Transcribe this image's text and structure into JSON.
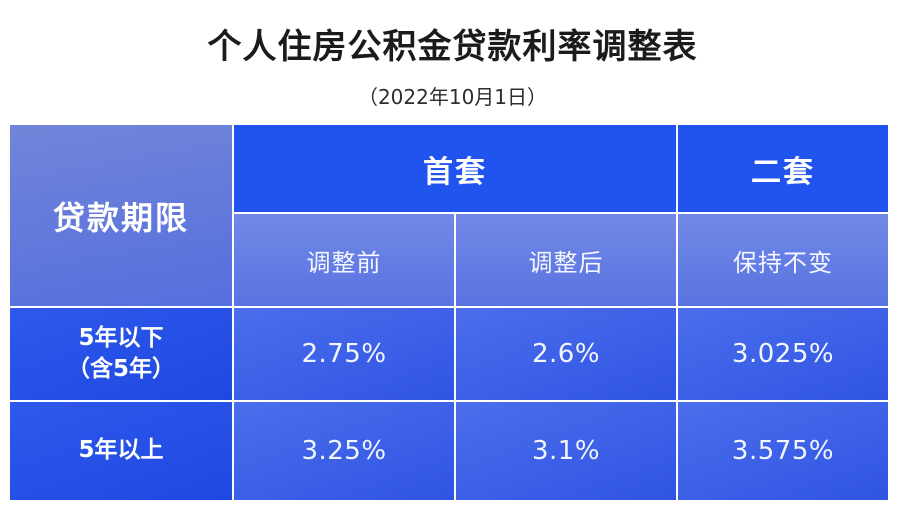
{
  "header": {
    "title": "个人住房公积金贷款利率调整表",
    "subtitle": "（2022年10月1日）"
  },
  "table": {
    "corner_header": "贷款期限",
    "group_headers": [
      "首套",
      "二套"
    ],
    "sub_headers": [
      "调整前",
      "调整后",
      "保持不变"
    ],
    "rows": [
      {
        "label_line1": "5年以下",
        "label_line2": "（含5年）",
        "values": [
          "2.75%",
          "2.6%",
          "3.025%"
        ]
      },
      {
        "label_line1": "5年以上",
        "label_line2": "",
        "values": [
          "3.25%",
          "3.1%",
          "3.575%"
        ]
      }
    ]
  },
  "colors": {
    "group-header": "#2154ef",
    "subheader-top": "#7189e6",
    "subheader-bottom": "#5973e1",
    "corner-top": "#7384d9",
    "corner-bottom": "#5470de",
    "label-top": "#2e59ec",
    "label-bottom": "#1e48e0",
    "value-top": "#4b6eec",
    "value-bottom": "#2f54e2",
    "grid-line": "#ffffff",
    "table-text": "#ffffff",
    "title-text": "#1b1b1b",
    "subtitle-text": "#2e2e2e"
  },
  "chart_data": {
    "type": "table",
    "title": "个人住房公积金贷款利率调整表",
    "subtitle": "（2022年10月1日）",
    "column_groups": [
      {
        "label": "贷款期限",
        "span": 1
      },
      {
        "label": "首套",
        "span": 2
      },
      {
        "label": "二套",
        "span": 1
      }
    ],
    "columns": [
      "贷款期限",
      "调整前",
      "调整后",
      "保持不变"
    ],
    "rows": [
      [
        "5年以下（含5年）",
        "2.75%",
        "2.6%",
        "3.025%"
      ],
      [
        "5年以上",
        "3.25%",
        "3.1%",
        "3.575%"
      ]
    ]
  }
}
